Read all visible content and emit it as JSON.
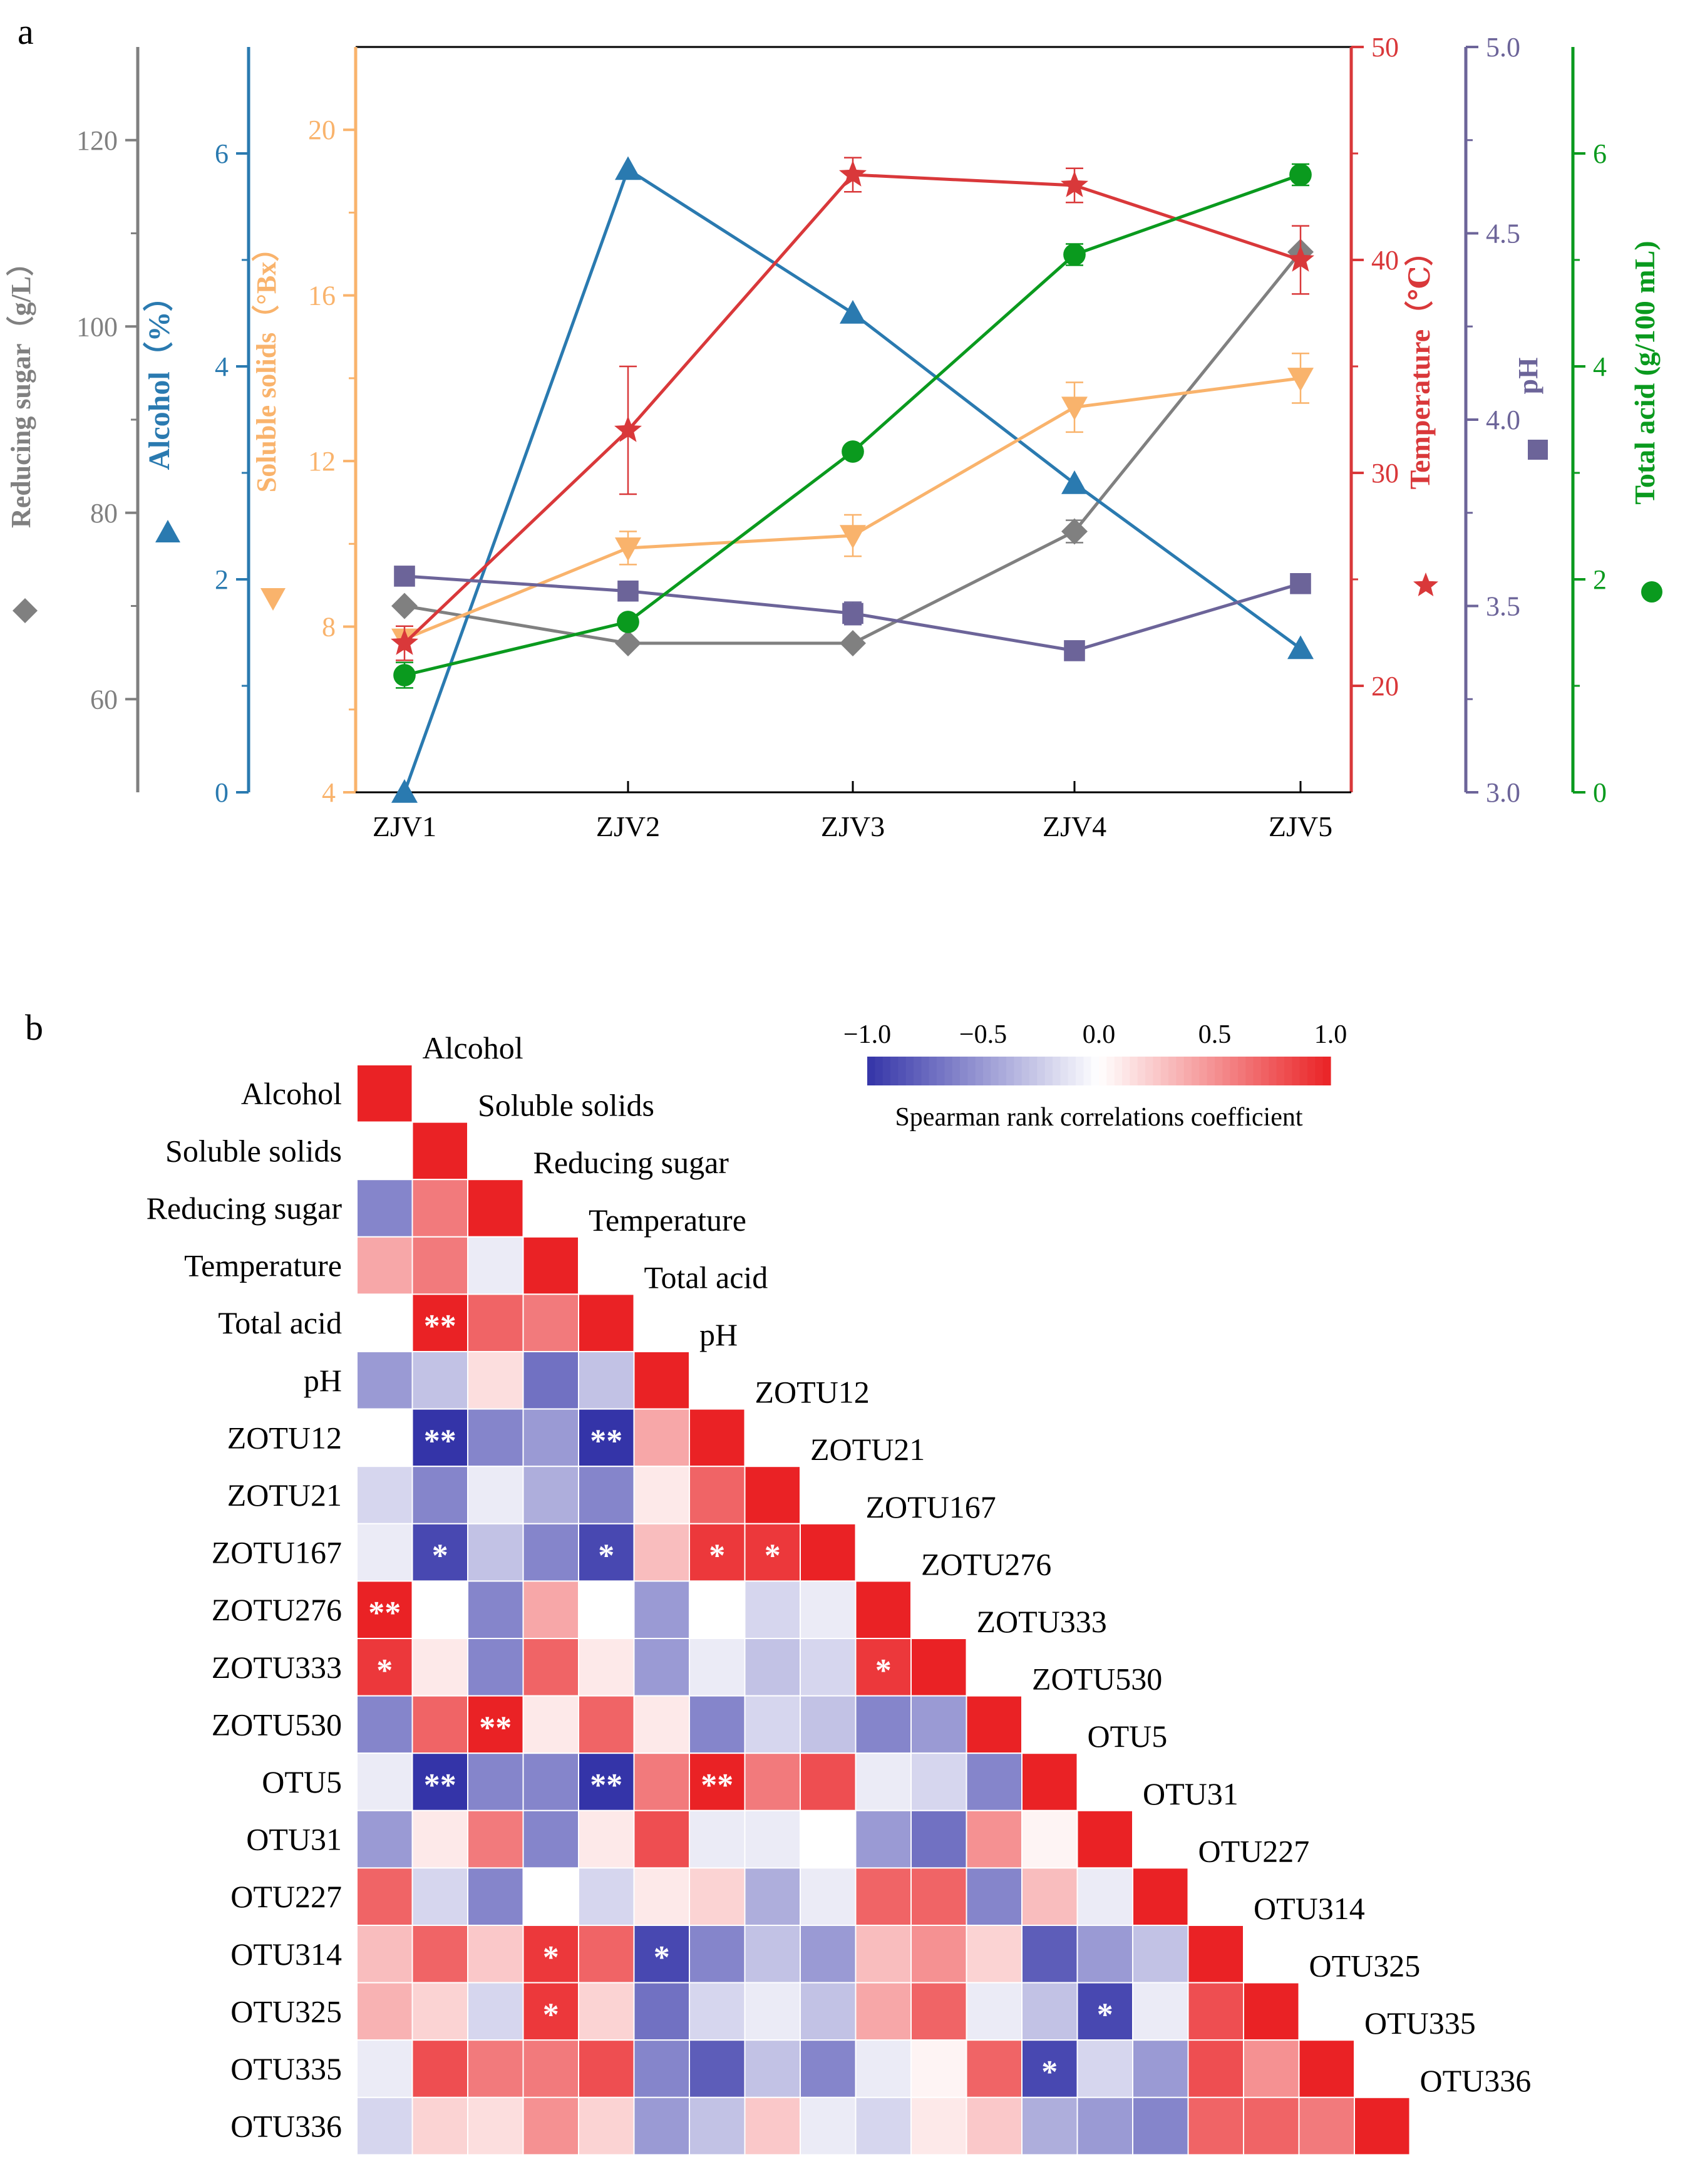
{
  "panel_a": {
    "label": "a",
    "x_labels": [
      "ZJV1",
      "ZJV2",
      "ZJV3",
      "ZJV4",
      "ZJV5"
    ],
    "axes": [
      {
        "key": "sugar",
        "title": "Reducing sugar（g/L）",
        "color": "#808080",
        "ticks": [
          "60",
          "80",
          "100",
          "120"
        ],
        "min": 50,
        "max": 130
      },
      {
        "key": "alcohol",
        "title": "Alcohol（%）",
        "color": "#2a7ab0",
        "ticks": [
          "0",
          "2",
          "4",
          "6"
        ],
        "min": 0,
        "max": 7
      },
      {
        "key": "solids",
        "title": "Soluble solids（°Bx）",
        "color": "#f9b36c",
        "ticks": [
          "4",
          "8",
          "12",
          "16",
          "20"
        ],
        "min": 4,
        "max": 22
      },
      {
        "key": "temp",
        "title": "Temperature（℃）",
        "color": "#d9383a",
        "ticks": [
          "20",
          "30",
          "40",
          "50"
        ],
        "min": 15,
        "max": 50
      },
      {
        "key": "ph",
        "title": "pH",
        "color": "#6c6499",
        "ticks": [
          "3.0",
          "3.5",
          "4.0",
          "4.5",
          "5.0"
        ],
        "min": 3.0,
        "max": 5.0
      },
      {
        "key": "acid",
        "title": "Total acid (g/100 mL)",
        "color": "#0a9a1e",
        "ticks": [
          "0",
          "2",
          "4",
          "6"
        ],
        "min": 0,
        "max": 7
      }
    ]
  },
  "chart_data": [
    {
      "type": "line",
      "categories": [
        "ZJV1",
        "ZJV2",
        "ZJV3",
        "ZJV4",
        "ZJV5"
      ],
      "series": [
        {
          "name": "Reducing sugar",
          "unit": "g/L",
          "marker": "diamond",
          "values": [
            70,
            66,
            66,
            78,
            108
          ]
        },
        {
          "name": "Alcohol",
          "unit": "%",
          "marker": "triangle-up",
          "values": [
            0.0,
            5.85,
            4.5,
            2.9,
            1.35
          ]
        },
        {
          "name": "Soluble solids",
          "unit": "°Bx",
          "marker": "triangle-down",
          "values": [
            7.7,
            9.9,
            10.2,
            13.3,
            14.0
          ]
        },
        {
          "name": "Temperature",
          "unit": "℃",
          "marker": "star",
          "values": [
            22,
            32,
            44,
            43.5,
            40
          ]
        },
        {
          "name": "pH",
          "unit": "",
          "marker": "square",
          "values": [
            3.58,
            3.54,
            3.48,
            3.38,
            3.56
          ]
        },
        {
          "name": "Total acid",
          "unit": "g/100 mL",
          "marker": "circle",
          "values": [
            1.1,
            1.6,
            3.2,
            5.05,
            5.8
          ]
        }
      ]
    },
    {
      "type": "heatmap",
      "label": "b",
      "variables": [
        "Alcohol",
        "Soluble solids",
        "Reducing sugar",
        "Temperature",
        "Total acid",
        "pH",
        "ZOTU12",
        "ZOTU21",
        "ZOTU167",
        "ZOTU276",
        "ZOTU333",
        "ZOTU530",
        "OTU5",
        "OTU31",
        "OTU227",
        "OTU314",
        "OTU325",
        "OTU335",
        "OTU336"
      ],
      "lower_triangle": [
        [
          1.0
        ],
        [
          0.0,
          1.0
        ],
        [
          -0.6,
          0.6,
          1.0
        ],
        [
          0.4,
          0.6,
          -0.1,
          1.0
        ],
        [
          0.0,
          1.0,
          0.7,
          0.6,
          1.0
        ],
        [
          -0.5,
          -0.3,
          0.15,
          -0.7,
          -0.3,
          1.0
        ],
        [
          0.0,
          -1.0,
          -0.6,
          -0.5,
          -1.0,
          0.4,
          1.0
        ],
        [
          -0.2,
          -0.6,
          -0.1,
          -0.4,
          -0.6,
          0.1,
          0.7,
          1.0
        ],
        [
          -0.1,
          -0.9,
          -0.3,
          -0.6,
          -0.9,
          0.3,
          0.9,
          0.9,
          1.0
        ],
        [
          1.0,
          0.0,
          -0.6,
          0.4,
          0.0,
          -0.5,
          0.0,
          -0.2,
          -0.1,
          1.0
        ],
        [
          0.9,
          0.1,
          -0.6,
          0.7,
          0.1,
          -0.5,
          -0.1,
          -0.3,
          -0.2,
          0.9,
          1.0
        ],
        [
          -0.6,
          0.7,
          1.0,
          0.1,
          0.7,
          0.1,
          -0.6,
          -0.2,
          -0.3,
          -0.6,
          -0.5,
          1.0
        ],
        [
          -0.1,
          -1.0,
          -0.6,
          -0.6,
          -1.0,
          0.6,
          1.0,
          0.6,
          0.8,
          -0.1,
          -0.2,
          -0.6,
          1.0
        ],
        [
          -0.5,
          0.1,
          0.6,
          -0.6,
          0.1,
          0.8,
          -0.1,
          -0.1,
          0.0,
          -0.5,
          -0.7,
          0.5,
          0.05,
          1.0
        ],
        [
          0.7,
          -0.2,
          -0.6,
          0.0,
          -0.2,
          0.1,
          0.2,
          -0.4,
          -0.1,
          0.7,
          0.7,
          -0.6,
          0.3,
          -0.1,
          1.0
        ],
        [
          0.3,
          0.7,
          0.25,
          0.9,
          0.7,
          -0.9,
          -0.6,
          -0.3,
          -0.5,
          0.3,
          0.5,
          0.2,
          -0.8,
          -0.5,
          -0.3,
          1.0
        ],
        [
          0.35,
          0.2,
          -0.2,
          0.9,
          0.2,
          -0.7,
          -0.2,
          -0.1,
          -0.3,
          0.4,
          0.7,
          -0.1,
          -0.3,
          -0.9,
          -0.1,
          0.8,
          1.0
        ],
        [
          -0.1,
          0.8,
          0.6,
          0.6,
          0.8,
          -0.6,
          -0.8,
          -0.3,
          -0.6,
          -0.1,
          0.05,
          0.7,
          -0.9,
          -0.2,
          -0.5,
          0.8,
          0.5,
          1.0
        ],
        [
          -0.2,
          0.2,
          0.15,
          0.5,
          0.2,
          -0.5,
          -0.3,
          0.25,
          -0.1,
          -0.2,
          0.1,
          0.25,
          -0.4,
          -0.5,
          -0.6,
          0.7,
          0.7,
          0.6,
          1.0
        ]
      ],
      "significance": [
        {
          "row": 4,
          "col": 1,
          "mark": "**"
        },
        {
          "row": 6,
          "col": 1,
          "mark": "**"
        },
        {
          "row": 6,
          "col": 4,
          "mark": "**"
        },
        {
          "row": 8,
          "col": 1,
          "mark": "*"
        },
        {
          "row": 8,
          "col": 4,
          "mark": "*"
        },
        {
          "row": 8,
          "col": 6,
          "mark": "*"
        },
        {
          "row": 8,
          "col": 7,
          "mark": "*"
        },
        {
          "row": 9,
          "col": 0,
          "mark": "**"
        },
        {
          "row": 10,
          "col": 0,
          "mark": "*"
        },
        {
          "row": 10,
          "col": 9,
          "mark": "*"
        },
        {
          "row": 11,
          "col": 2,
          "mark": "**"
        },
        {
          "row": 12,
          "col": 1,
          "mark": "**"
        },
        {
          "row": 12,
          "col": 4,
          "mark": "**"
        },
        {
          "row": 12,
          "col": 6,
          "mark": "**"
        },
        {
          "row": 15,
          "col": 3,
          "mark": "*"
        },
        {
          "row": 15,
          "col": 5,
          "mark": "*"
        },
        {
          "row": 16,
          "col": 3,
          "mark": "*"
        },
        {
          "row": 16,
          "col": 13,
          "mark": "*"
        },
        {
          "row": 17,
          "col": 12,
          "mark": "*"
        }
      ],
      "colorbar": {
        "ticks": [
          "−1.0",
          "−0.5",
          "0.0",
          "0.5",
          "1.0"
        ],
        "label": "Spearman rank correlations coefficient",
        "neg_color": "#3434a8",
        "pos_color": "#ea2225"
      }
    }
  ]
}
